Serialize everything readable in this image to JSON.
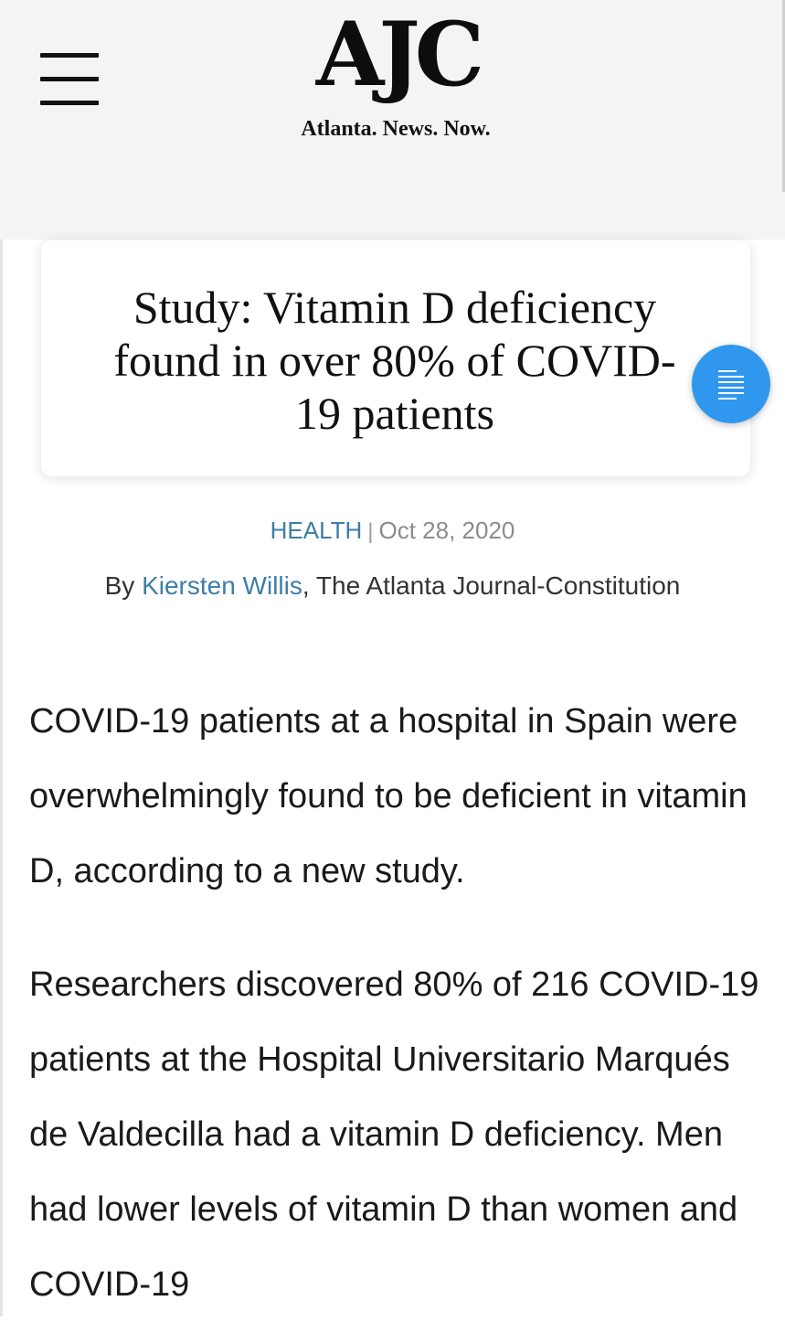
{
  "header": {
    "menu_icon": "hamburger-menu-icon",
    "logo": "AJC",
    "tagline": "Atlanta. News. Now."
  },
  "article": {
    "headline": "Study: Vitamin D deficiency found in over 80% of COVID-19 patients",
    "category": "HEALTH",
    "separator": "|",
    "date": "Oct 28, 2020",
    "byline_prefix": "By ",
    "author": "Kiersten Willis",
    "publication": ", The Atlanta Journal-Constitution",
    "paragraphs": [
      "COVID-19 patients at a hospital in Spain were overwhelmingly found to be deficient in vitamin D, according to a new study.",
      "Researchers discovered 80% of 216 COVID-19 patients at the Hospital Universitario Marqués de Valdecilla had a vitamin D deficiency. Men had lower levels of vitamin D than women and COVID-19"
    ]
  },
  "toc_button": {
    "icon": "table-of-contents-icon"
  },
  "colors": {
    "header_bg": "#f4f4f4",
    "link": "#3d7ea6",
    "toc_button": "#2f97ee",
    "date": "#8c8c8c"
  }
}
